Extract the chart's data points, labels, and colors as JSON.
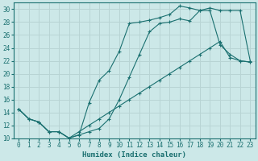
{
  "xlabel": "Humidex (Indice chaleur)",
  "bg_color": "#cce8e8",
  "grid_color": "#b8d4d4",
  "line_color": "#1a7070",
  "xlim": [
    -0.5,
    23.5
  ],
  "ylim": [
    10,
    31
  ],
  "xticks": [
    0,
    1,
    2,
    3,
    4,
    5,
    6,
    7,
    8,
    9,
    10,
    11,
    12,
    13,
    14,
    15,
    16,
    17,
    18,
    19,
    20,
    21,
    22,
    23
  ],
  "yticks": [
    10,
    12,
    14,
    16,
    18,
    20,
    22,
    24,
    26,
    28,
    30
  ],
  "line1_x": [
    0,
    1,
    2,
    3,
    4,
    5,
    6,
    7,
    8,
    9,
    10,
    11,
    12,
    13,
    14,
    15,
    16,
    17,
    18,
    19,
    20,
    21,
    22,
    23
  ],
  "line1_y": [
    14.5,
    13.0,
    12.5,
    11.0,
    11.0,
    10.0,
    10.5,
    11.0,
    11.5,
    13.0,
    16.0,
    19.5,
    23.0,
    26.5,
    27.8,
    28.0,
    28.5,
    28.2,
    29.8,
    30.2,
    29.8,
    29.8,
    29.8,
    22.0
  ],
  "line2_x": [
    0,
    1,
    2,
    3,
    4,
    5,
    6,
    7,
    8,
    9,
    10,
    11,
    12,
    13,
    14,
    15,
    16,
    17,
    18,
    19,
    20,
    21,
    22,
    23
  ],
  "line2_y": [
    14.5,
    13.0,
    12.5,
    11.0,
    11.0,
    10.0,
    10.5,
    15.5,
    19.0,
    20.5,
    23.5,
    27.8,
    28.0,
    28.3,
    28.7,
    29.2,
    30.5,
    30.2,
    29.8,
    29.8,
    24.5,
    23.0,
    22.0,
    21.8
  ],
  "line3_x": [
    0,
    1,
    2,
    3,
    4,
    5,
    6,
    7,
    8,
    9,
    10,
    11,
    12,
    13,
    14,
    15,
    16,
    17,
    18,
    19,
    20,
    21,
    22,
    23
  ],
  "line3_y": [
    14.5,
    13.0,
    12.5,
    11.0,
    11.0,
    10.0,
    11.0,
    12.0,
    13.0,
    14.0,
    15.0,
    16.0,
    17.0,
    18.0,
    19.0,
    20.0,
    21.0,
    22.0,
    23.0,
    24.0,
    25.0,
    22.5,
    22.0,
    21.8
  ]
}
